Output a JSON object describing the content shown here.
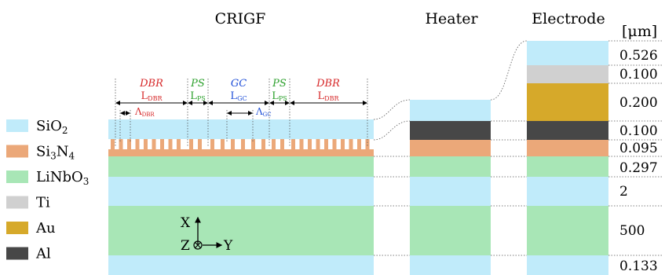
{
  "titles": {
    "crigf": "CRIGF",
    "heater": "Heater",
    "electrode": "Electrode",
    "unit": "[μm]"
  },
  "legend": [
    {
      "key": "sio2",
      "main": "SiO",
      "sub": "2",
      "main2": "",
      "sub2": "",
      "color": "#c0ebfa"
    },
    {
      "key": "si3n4",
      "main": "Si",
      "sub": "3",
      "main2": "N",
      "sub2": "4",
      "color": "#eba879"
    },
    {
      "key": "linbo3",
      "main": "LiNbO",
      "sub": "3",
      "main2": "",
      "sub2": "",
      "color": "#a8e6b6"
    },
    {
      "key": "ti",
      "main": "Ti",
      "sub": "",
      "main2": "",
      "sub2": "",
      "color": "#d0d0d0"
    },
    {
      "key": "au",
      "main": "Au",
      "sub": "",
      "main2": "",
      "sub2": "",
      "color": "#d6a92a"
    },
    {
      "key": "al",
      "main": "Al",
      "sub": "",
      "main2": "",
      "sub2": "",
      "color": "#474747"
    }
  ],
  "thickness_labels": [
    "0.526",
    "0.100",
    "0.200",
    "0.100",
    "0.095",
    "0.297",
    "2",
    "500",
    "0.133"
  ],
  "sections": {
    "dbr_left": {
      "name": "DBR",
      "length": "L",
      "length_sub": "DBR",
      "color": "#d62728"
    },
    "ps_left": {
      "name": "PS",
      "length": "L",
      "length_sub": "PS",
      "color": "#2ca02c"
    },
    "gc": {
      "name": "GC",
      "length": "L",
      "length_sub": "GC",
      "color": "#1f4fd8"
    },
    "ps_right": {
      "name": "PS",
      "length": "L",
      "length_sub": "PS",
      "color": "#2ca02c"
    },
    "dbr_right": {
      "name": "DBR",
      "length": "L",
      "length_sub": "DBR",
      "color": "#d62728"
    }
  },
  "periods": {
    "dbr": {
      "symbol": "Λ",
      "sub": "DBR",
      "color": "#d62728"
    },
    "gc": {
      "symbol": "Λ",
      "sub": "GC",
      "color": "#1f4fd8"
    }
  },
  "axes": {
    "x": "X",
    "z": "Z",
    "y": "Y"
  }
}
